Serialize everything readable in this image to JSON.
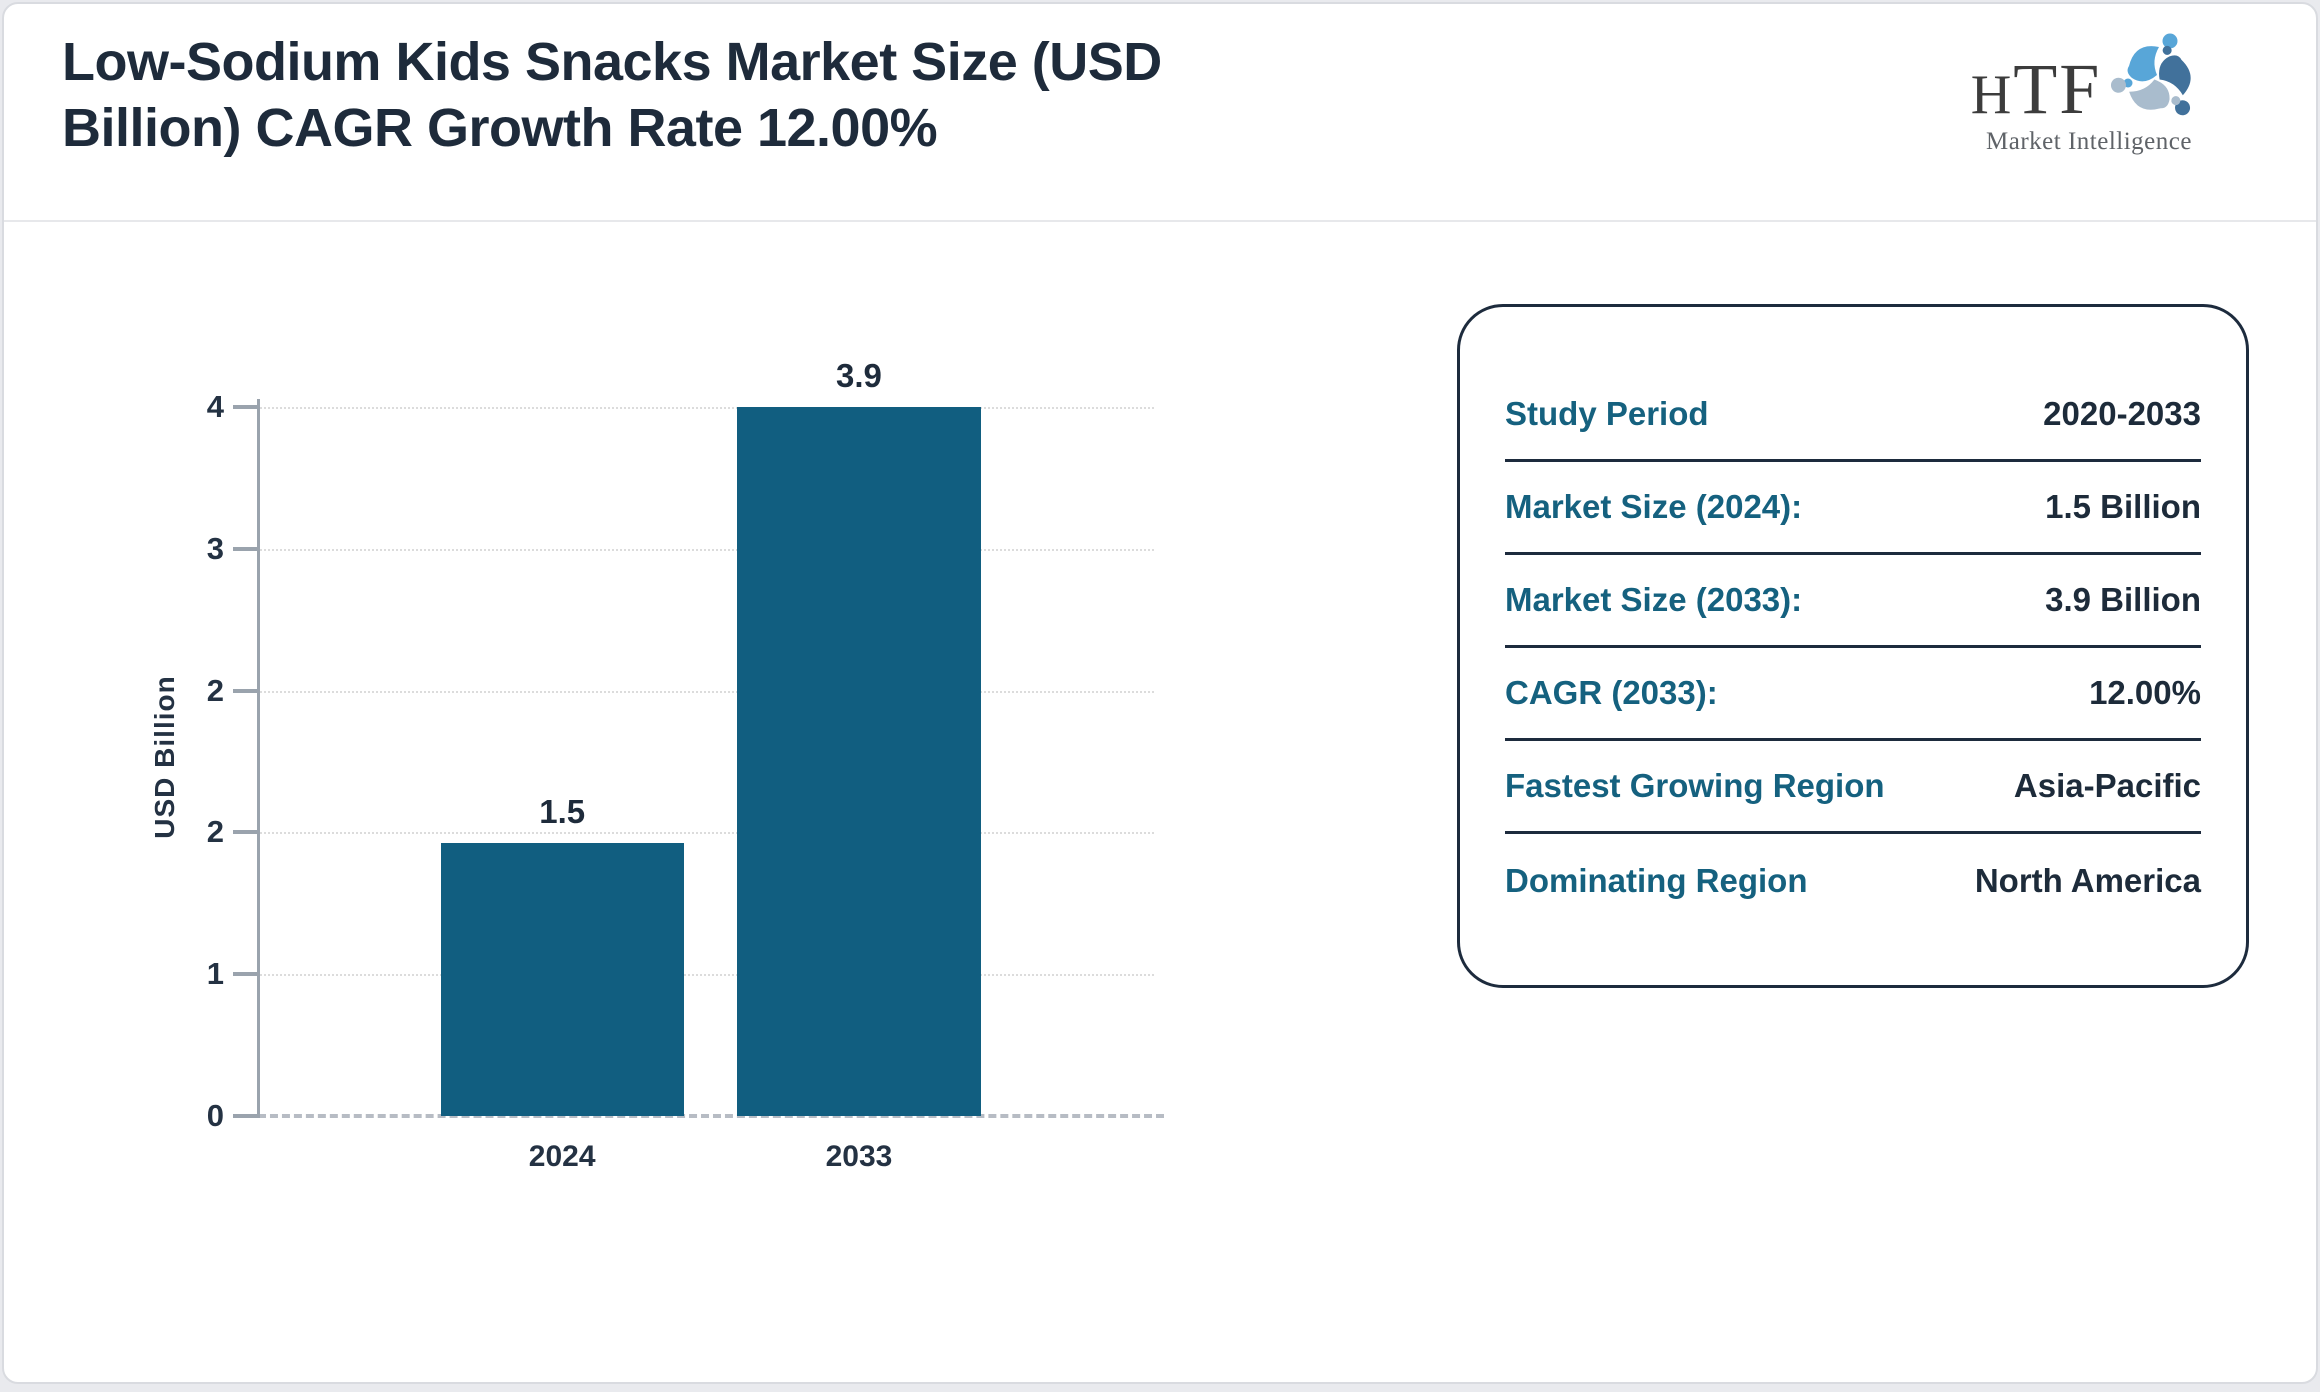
{
  "header": {
    "title": "Low-Sodium Kids Snacks Market Size (USD Billion) CAGR Growth Rate 12.00%"
  },
  "logo": {
    "brand_h": "H",
    "brand_tf": "TF",
    "tagline": "Market Intelligence"
  },
  "chart_data": {
    "type": "bar",
    "categories": [
      "2024",
      "2033"
    ],
    "values": [
      1.5,
      3.9
    ],
    "value_labels": [
      "1.5",
      "3.9"
    ],
    "title": "Low-Sodium Kids Snacks Market Size (USD Billion) CAGR Growth Rate 12.00%",
    "xlabel": "",
    "ylabel": "USD Billion",
    "ylim": [
      0,
      3.9
    ],
    "yticks_top_to_bottom": [
      "4",
      "3",
      "2",
      "2",
      "1",
      "0"
    ],
    "grid": "horizontal-dotted",
    "legend": "none",
    "bar_color": "#115e80"
  },
  "info_panel": {
    "rows": [
      {
        "label": "Study Period",
        "value": "2020-2033"
      },
      {
        "label": "Market Size (2024):",
        "value": "1.5 Billion"
      },
      {
        "label": "Market Size (2033):",
        "value": "3.9 Billion"
      },
      {
        "label": "CAGR (2033):",
        "value": "12.00%"
      },
      {
        "label": "Fastest Growing Region",
        "value": "Asia-Pacific"
      },
      {
        "label": "Dominating Region",
        "value": "North America"
      }
    ]
  },
  "colors": {
    "bar": "#115e80",
    "label_teal": "#15617f",
    "navy_text": "#1e2b3b",
    "axis_gray": "#9aa3ad",
    "grid_gray": "#dcdcdc",
    "card_border": "#1d2b3d",
    "logo_blue_light": "#58a6d8",
    "logo_blue_dark": "#41719b",
    "logo_blue_pale": "#a9bccd"
  }
}
